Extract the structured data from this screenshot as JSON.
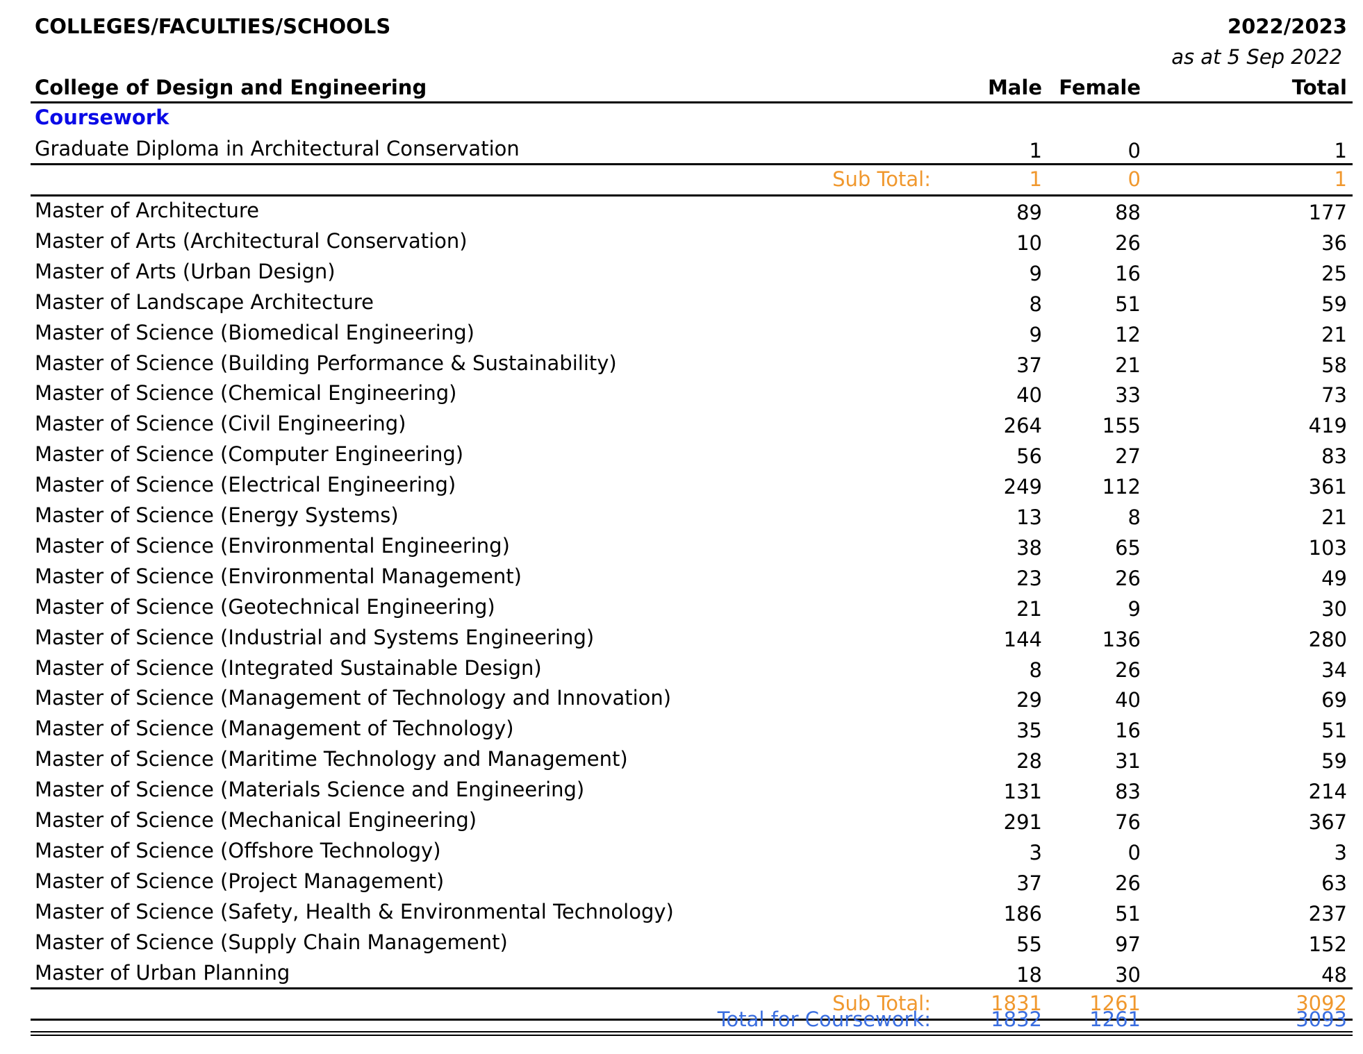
{
  "header": {
    "title": "COLLEGES/FACULTIES/SCHOOLS",
    "year": "2022/2023",
    "as_at": "as at 5 Sep 2022"
  },
  "table": {
    "college": "College of Design and Engineering",
    "columns": [
      "Male",
      "Female",
      "Total"
    ],
    "section": "Coursework",
    "groups": [
      {
        "rows": [
          [
            "Graduate Diploma in Architectural Conservation",
            1,
            0,
            1
          ]
        ],
        "subtotal_label": "Sub Total:",
        "subtotal": [
          1,
          0,
          1
        ]
      },
      {
        "rows": [
          [
            "Master of Architecture",
            89,
            88,
            177
          ],
          [
            "Master of Arts (Architectural Conservation)",
            10,
            26,
            36
          ],
          [
            "Master of Arts (Urban Design)",
            9,
            16,
            25
          ],
          [
            "Master of Landscape Architecture",
            8,
            51,
            59
          ],
          [
            "Master of Science (Biomedical Engineering)",
            9,
            12,
            21
          ],
          [
            "Master of Science (Building Performance & Sustainability)",
            37,
            21,
            58
          ],
          [
            "Master of Science (Chemical Engineering)",
            40,
            33,
            73
          ],
          [
            "Master of Science (Civil Engineering)",
            264,
            155,
            419
          ],
          [
            "Master of Science (Computer Engineering)",
            56,
            27,
            83
          ],
          [
            "Master of Science (Electrical Engineering)",
            249,
            112,
            361
          ],
          [
            "Master of Science (Energy Systems)",
            13,
            8,
            21
          ],
          [
            "Master of Science (Environmental Engineering)",
            38,
            65,
            103
          ],
          [
            "Master of Science (Environmental Management)",
            23,
            26,
            49
          ],
          [
            "Master of Science (Geotechnical Engineering)",
            21,
            9,
            30
          ],
          [
            "Master of Science (Industrial and Systems Engineering)",
            144,
            136,
            280
          ],
          [
            "Master of Science (Integrated Sustainable Design)",
            8,
            26,
            34
          ],
          [
            "Master of Science (Management of Technology and Innovation)",
            29,
            40,
            69
          ],
          [
            "Master of Science (Management of Technology)",
            35,
            16,
            51
          ],
          [
            "Master of Science (Maritime Technology and Management)",
            28,
            31,
            59
          ],
          [
            "Master of Science (Materials Science and Engineering)",
            131,
            83,
            214
          ],
          [
            "Master of Science (Mechanical Engineering)",
            291,
            76,
            367
          ],
          [
            "Master of Science (Offshore Technology)",
            3,
            0,
            3
          ],
          [
            "Master of Science (Project Management)",
            37,
            26,
            63
          ],
          [
            "Master of Science (Safety, Health & Environmental Technology)",
            186,
            51,
            237
          ],
          [
            "Master of Science (Supply Chain Management)",
            55,
            97,
            152
          ],
          [
            "Master of Urban Planning",
            18,
            30,
            48
          ]
        ],
        "subtotal_label": "Sub Total:",
        "subtotal": [
          1831,
          1261,
          3092
        ]
      }
    ],
    "total_label": "Total for Coursework:",
    "total": [
      1832,
      1261,
      3093
    ]
  }
}
